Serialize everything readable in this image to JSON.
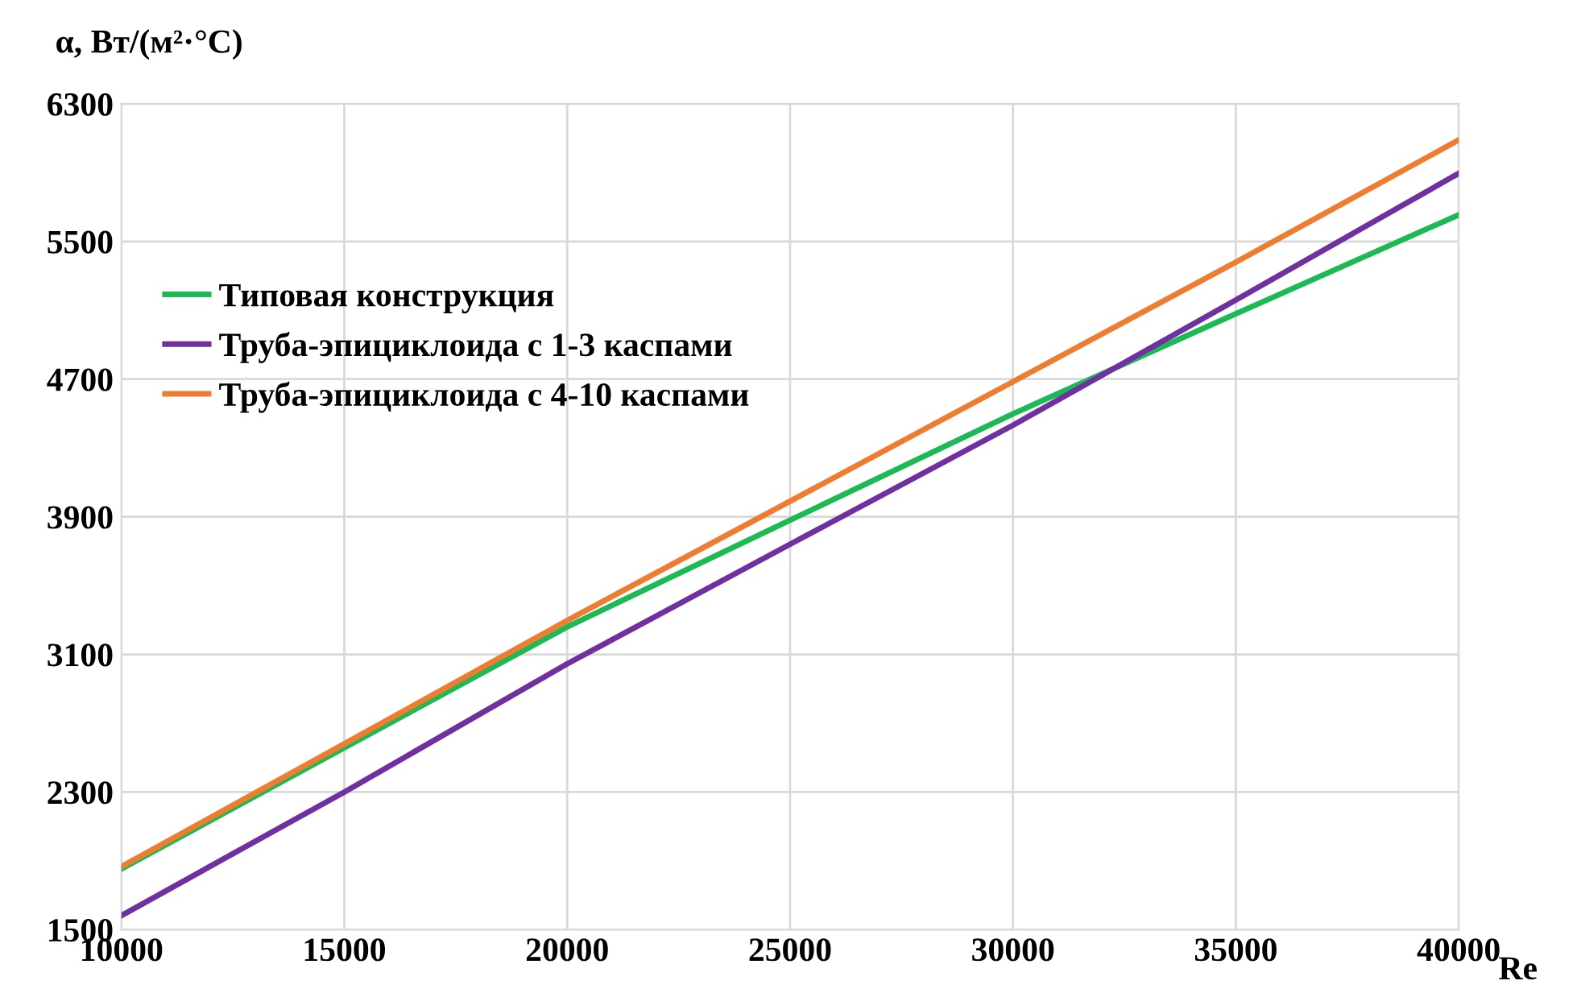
{
  "chart_data": {
    "type": "line",
    "ylabel": "α, Вт/(м²·°C)",
    "xlabel": "Re",
    "x": [
      10000,
      15000,
      20000,
      25000,
      30000,
      35000,
      40000
    ],
    "series": [
      {
        "name": "Типовая конструкция",
        "color": "#1db954",
        "values": [
          1853,
          2557,
          3260,
          3880,
          4498,
          5080,
          5655
        ]
      },
      {
        "name": "Труба-эпициклоида с 1-3 каспами",
        "color": "#7030a0",
        "values": [
          1582,
          2300,
          3045,
          3740,
          4432,
          5160,
          5896
        ]
      },
      {
        "name": "Труба-эпициклоида с 4-10 каспами",
        "color": "#ed7d31",
        "values": [
          1866,
          2580,
          3297,
          3990,
          4685,
          5380,
          6090
        ]
      }
    ],
    "xlim": [
      10000,
      40000
    ],
    "xticks": [
      10000,
      15000,
      20000,
      25000,
      30000,
      35000,
      40000
    ],
    "ylim": [
      1500,
      6300
    ],
    "yticks": [
      1500,
      2300,
      3100,
      3900,
      4700,
      5500,
      6300
    ],
    "grid": true,
    "legend": "top left",
    "marker": "none",
    "line_style": "solid"
  }
}
